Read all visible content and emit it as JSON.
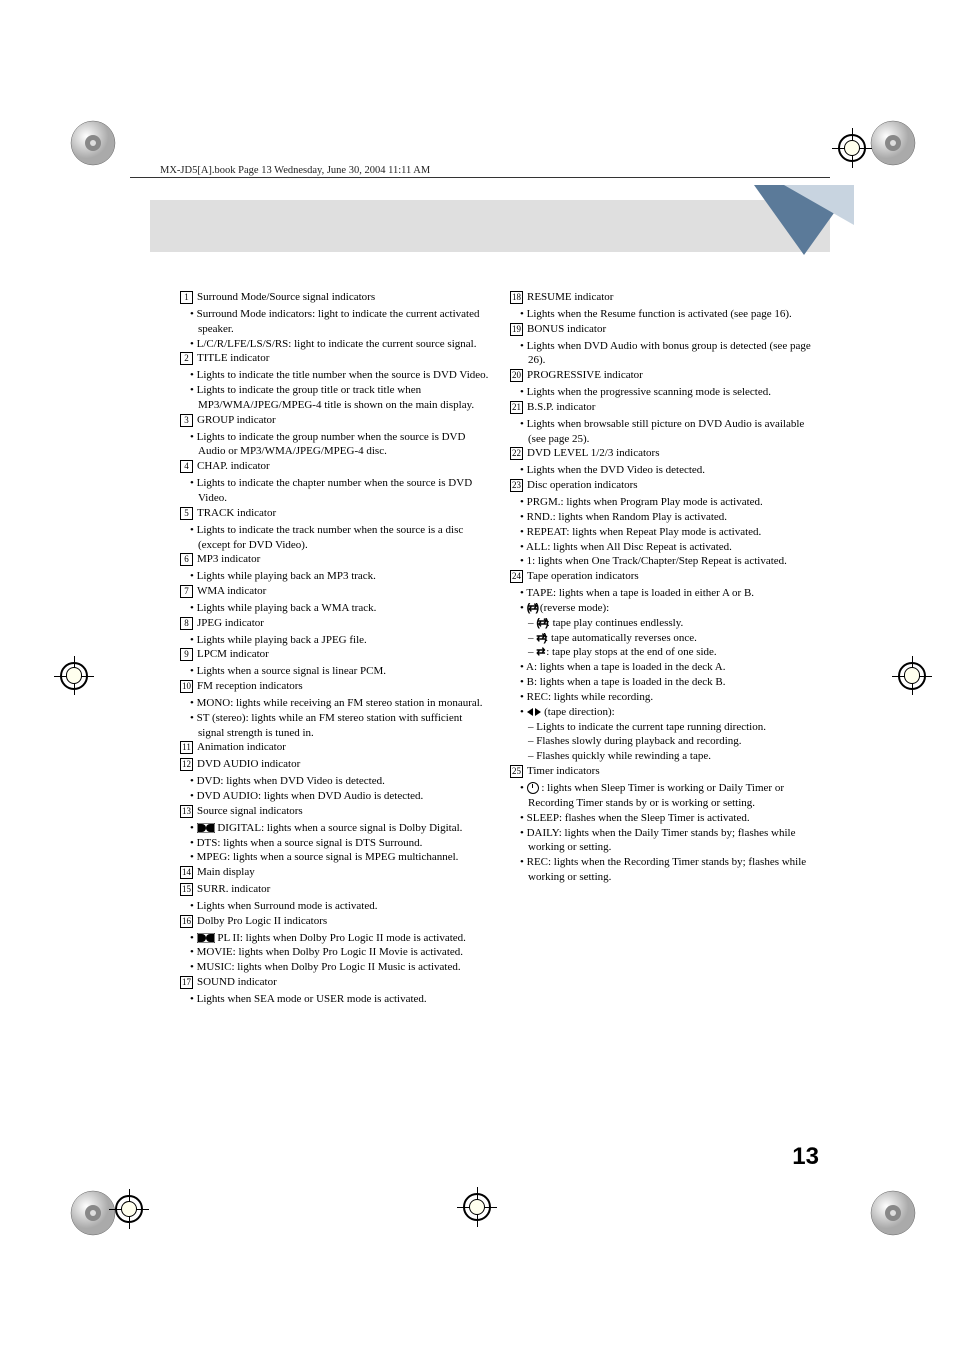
{
  "header_text": "MX-JD5[A].book  Page 13  Wednesday, June 30, 2004  11:11 AM",
  "page_number": "13",
  "left_col": [
    {
      "n": "1",
      "label": "Surround Mode/Source signal indicators",
      "subs": [
        "• Surround Mode indicators: light to indicate the current activated speaker.",
        "• L/C/R/LFE/LS/S/RS: light to indicate the current source signal."
      ]
    },
    {
      "n": "2",
      "label": "TITLE indicator",
      "subs": [
        "• Lights to indicate the title number when the source is DVD Video.",
        "• Lights to indicate the group title or track title when MP3/WMA/JPEG/MPEG-4 title is shown on the main display."
      ]
    },
    {
      "n": "3",
      "label": "GROUP indicator",
      "subs": [
        "• Lights to indicate the group number when the source is DVD Audio or MP3/WMA/JPEG/MPEG-4 disc."
      ]
    },
    {
      "n": "4",
      "label": "CHAP. indicator",
      "subs": [
        "• Lights to indicate the chapter number when the source is DVD Video."
      ]
    },
    {
      "n": "5",
      "label": "TRACK indicator",
      "subs": [
        "• Lights to indicate the track number when the source is a disc (except for DVD Video)."
      ]
    },
    {
      "n": "6",
      "label": "MP3 indicator",
      "subs": [
        "• Lights while playing back an MP3 track."
      ]
    },
    {
      "n": "7",
      "label": "WMA indicator",
      "subs": [
        "• Lights while playing back a WMA track."
      ]
    },
    {
      "n": "8",
      "label": "JPEG indicator",
      "subs": [
        "• Lights while playing back a JPEG file."
      ]
    },
    {
      "n": "9",
      "label": "LPCM indicator",
      "subs": [
        "• Lights when a source signal is linear PCM."
      ]
    },
    {
      "n": "10",
      "label": "FM reception indicators",
      "subs": [
        "• MONO: lights while receiving an FM stereo station in monaural.",
        "• ST (stereo): lights while an FM stereo station with sufficient signal strength is tuned in."
      ]
    },
    {
      "n": "11",
      "label": "Animation indicator",
      "subs": []
    },
    {
      "n": "12",
      "label": "DVD AUDIO indicator",
      "subs": [
        "• DVD: lights when DVD Video is detected.",
        "• DVD AUDIO: lights when DVD Audio is detected."
      ]
    },
    {
      "n": "13",
      "label": "Source signal indicators",
      "subs": [
        {
          "type": "dolby",
          "text": " DIGITAL: lights when a source signal is Dolby Digital."
        },
        "• DTS: lights when a source signal is DTS Surround.",
        "• MPEG: lights when a source signal is MPEG multichannel."
      ]
    },
    {
      "n": "14",
      "label": "Main display",
      "subs": []
    },
    {
      "n": "15",
      "label": "SURR. indicator",
      "subs": [
        "• Lights when Surround mode is activated."
      ]
    },
    {
      "n": "16",
      "label": "Dolby Pro Logic II indicators",
      "subs": [
        {
          "type": "dolby",
          "text": " PL II: lights when Dolby Pro Logic II mode is activated."
        },
        "• MOVIE: lights when Dolby Pro Logic II Movie is activated.",
        "• MUSIC: lights when Dolby Pro Logic II Music is activated."
      ]
    },
    {
      "n": "17",
      "label": "SOUND indicator",
      "subs": [
        "• Lights when SEA mode or USER mode is activated."
      ]
    }
  ],
  "right_col": [
    {
      "n": "18",
      "label": "RESUME indicator",
      "subs": [
        "• Lights when the Resume function is activated (see page 16)."
      ]
    },
    {
      "n": "19",
      "label": "BONUS indicator",
      "subs": [
        "• Lights when DVD Audio with bonus group is detected (see page 26)."
      ]
    },
    {
      "n": "20",
      "label": "PROGRESSIVE indicator",
      "subs": [
        "• Lights when the progressive scanning mode is selected."
      ]
    },
    {
      "n": "21",
      "label": "B.S.P. indicator",
      "subs": [
        "• Lights when browsable still picture on DVD Audio is available (see page 25)."
      ]
    },
    {
      "n": "22",
      "label": "DVD LEVEL 1/2/3 indicators",
      "subs": [
        "• Lights when the DVD Video is detected."
      ]
    },
    {
      "n": "23",
      "label": "Disc operation indicators",
      "subs": [
        "• PRGM.: lights when Program Play mode is activated.",
        "• RND.: lights when Random Play is activated.",
        "• REPEAT: lights when Repeat Play mode is activated.",
        "• ALL: lights when All Disc Repeat is activated.",
        "• 1: lights when One Track/Chapter/Step Repeat is activated."
      ]
    },
    {
      "n": "24",
      "label": "Tape operation indicators",
      "subs": [
        "• TAPE: lights when a tape is loaded in either A or B.",
        {
          "type": "rev_header",
          "text": "(reverse mode):"
        },
        {
          "type": "rev1",
          "text": ":  tape play continues endlessly."
        },
        {
          "type": "rev2",
          "text": ":  tape automatically reverses once."
        },
        {
          "type": "rev3",
          "text": " :  tape play stops at the end of one side."
        },
        "• A: lights when a tape is loaded in the deck A.",
        "• B: lights when a tape is loaded in the deck B.",
        "• REC: lights while recording.",
        {
          "type": "tape_dir",
          "text": " (tape direction):"
        },
        {
          "type": "dash",
          "text": "Lights to indicate the current tape running direction."
        },
        {
          "type": "dash",
          "text": "Flashes slowly during playback and recording."
        },
        {
          "type": "dash",
          "text": "Flashes quickly while rewinding a tape."
        }
      ]
    },
    {
      "n": "25",
      "label": "Timer indicators",
      "subs": [
        {
          "type": "clock",
          "text": ": lights when Sleep Timer is working or Daily Timer or Recording Timer stands by or is working or setting."
        },
        "• SLEEP: flashes when the Sleep Timer is activated.",
        "• DAILY: lights when the Daily Timer stands by; flashes while working or setting.",
        "• REC: lights when the Recording Timer stands by; flashes while working or setting."
      ]
    }
  ]
}
